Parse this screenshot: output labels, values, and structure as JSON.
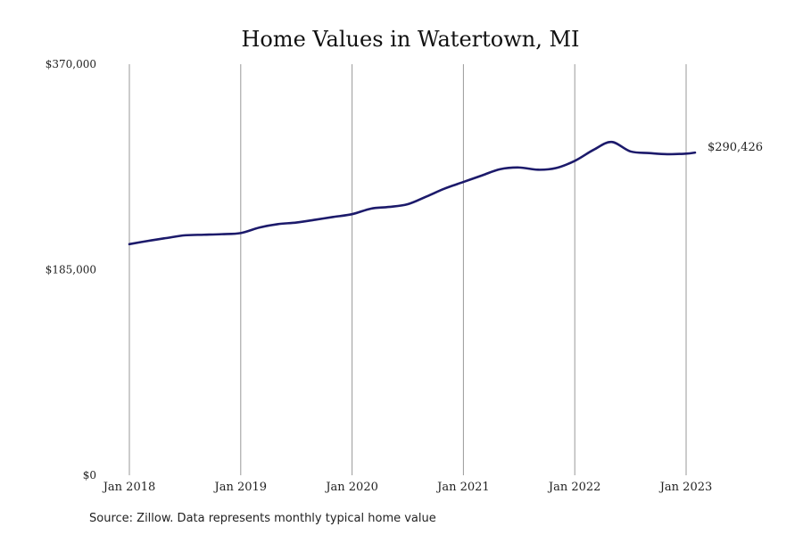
{
  "chart_data": {
    "type": "line",
    "title": "Home Values in Watertown, MI",
    "source": "Source: Zillow. Data represents monthly typical home value",
    "ylim": [
      0,
      370000
    ],
    "ytick_values": [
      0,
      185000,
      370000
    ],
    "ytick_labels": [
      "$0",
      "$185,000",
      "$370,000"
    ],
    "xlim": [
      2018.0,
      2023.0
    ],
    "xtick_values": [
      2018,
      2019,
      2020,
      2021,
      2022,
      2023
    ],
    "xtick_labels": [
      "Jan 2018",
      "Jan 2019",
      "Jan 2020",
      "Jan 2021",
      "Jan 2022",
      "Jan 2023"
    ],
    "grid": "vertical",
    "line_color": "#1c1a6b",
    "end_label": "$290,426",
    "series": [
      {
        "x": [
          2018.0,
          2018.17,
          2018.33,
          2018.5,
          2018.67,
          2018.83,
          2019.0,
          2019.17,
          2019.33,
          2019.5,
          2019.67,
          2019.83,
          2020.0,
          2020.17,
          2020.33,
          2020.5,
          2020.67,
          2020.83,
          2021.0,
          2021.17,
          2021.33,
          2021.5,
          2021.67,
          2021.83,
          2022.0,
          2022.17,
          2022.33,
          2022.5,
          2022.67,
          2022.83,
          2023.0,
          2023.08
        ],
        "y": [
          208000,
          211000,
          213500,
          216000,
          216500,
          217000,
          218000,
          223000,
          226000,
          227500,
          230000,
          232500,
          235000,
          240000,
          241500,
          244000,
          251000,
          258000,
          264000,
          270000,
          275500,
          277000,
          275000,
          276500,
          283000,
          293000,
          300000,
          291500,
          290000,
          289000,
          289500,
          290426
        ]
      }
    ]
  }
}
